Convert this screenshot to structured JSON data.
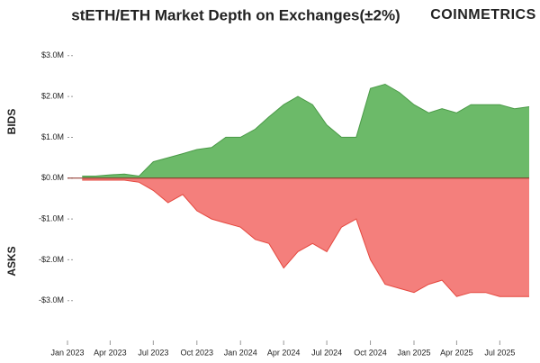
{
  "chart_data": {
    "type": "area",
    "title": "stETH/ETH Market Depth on Exchanges(±2%)",
    "brand": "COINMETRICS",
    "x": [
      "Feb 2023",
      "Mar 2023",
      "Apr 2023",
      "May 2023",
      "Jun 2023",
      "Jul 2023",
      "Aug 2023",
      "Sep 2023",
      "Oct 2023",
      "Nov 2023",
      "Dec 2023",
      "Jan 2024",
      "Feb 2024",
      "Mar 2024",
      "Apr 2024",
      "May 2024",
      "Jun 2024",
      "Jul 2024",
      "Aug 2024",
      "Sep 2024",
      "Oct 2024",
      "Nov 2024",
      "Dec 2024",
      "Jan 2025",
      "Feb 2025",
      "Mar 2025",
      "Apr 2025",
      "May 2025",
      "Jun 2025",
      "Jul 2025",
      "Aug 2025",
      "Sep 2025"
    ],
    "series": [
      {
        "name": "BIDS",
        "color": "#6cba69",
        "line_color": "#4a9a47",
        "values": [
          0.05,
          0.05,
          0.08,
          0.1,
          0.05,
          0.4,
          0.5,
          0.6,
          0.7,
          0.75,
          1.0,
          1.0,
          1.2,
          1.5,
          1.8,
          2.0,
          1.8,
          1.3,
          1.0,
          1.0,
          2.2,
          2.3,
          2.1,
          1.8,
          1.6,
          1.7,
          1.6,
          1.8,
          1.8,
          1.8,
          1.7,
          1.75
        ]
      },
      {
        "name": "ASKS",
        "color": "#f47f7c",
        "line_color": "#e5483f",
        "values": [
          -0.05,
          -0.05,
          -0.05,
          -0.05,
          -0.1,
          -0.3,
          -0.6,
          -0.4,
          -0.8,
          -1.0,
          -1.1,
          -1.2,
          -1.5,
          -1.6,
          -2.2,
          -1.8,
          -1.6,
          -1.8,
          -1.2,
          -1.0,
          -2.0,
          -2.6,
          -2.7,
          -2.8,
          -2.6,
          -2.5,
          -2.9,
          -2.8,
          -2.8,
          -2.9,
          -2.9,
          -2.9
        ]
      }
    ],
    "xlim": [
      "Jan 2023",
      "Sep 2025"
    ],
    "xticks": [
      "Jan 2023",
      "Apr 2023",
      "Jul 2023",
      "Oct 2023",
      "Jan 2024",
      "Apr 2024",
      "Jul 2024",
      "Oct 2024",
      "Jan 2025",
      "Apr 2025",
      "Jul 2025"
    ],
    "ylim": [
      -3.8,
      3.15
    ],
    "yticks": [
      {
        "value": 3,
        "label": "$3.0M"
      },
      {
        "value": 2,
        "label": "$2.0M"
      },
      {
        "value": 1,
        "label": "$1.0M"
      },
      {
        "value": 0,
        "label": "$0.0M"
      },
      {
        "value": -1,
        "label": "-$1.0M"
      },
      {
        "value": -2,
        "label": "-$2.0M"
      },
      {
        "value": -3,
        "label": "-$3.0M"
      }
    ]
  }
}
